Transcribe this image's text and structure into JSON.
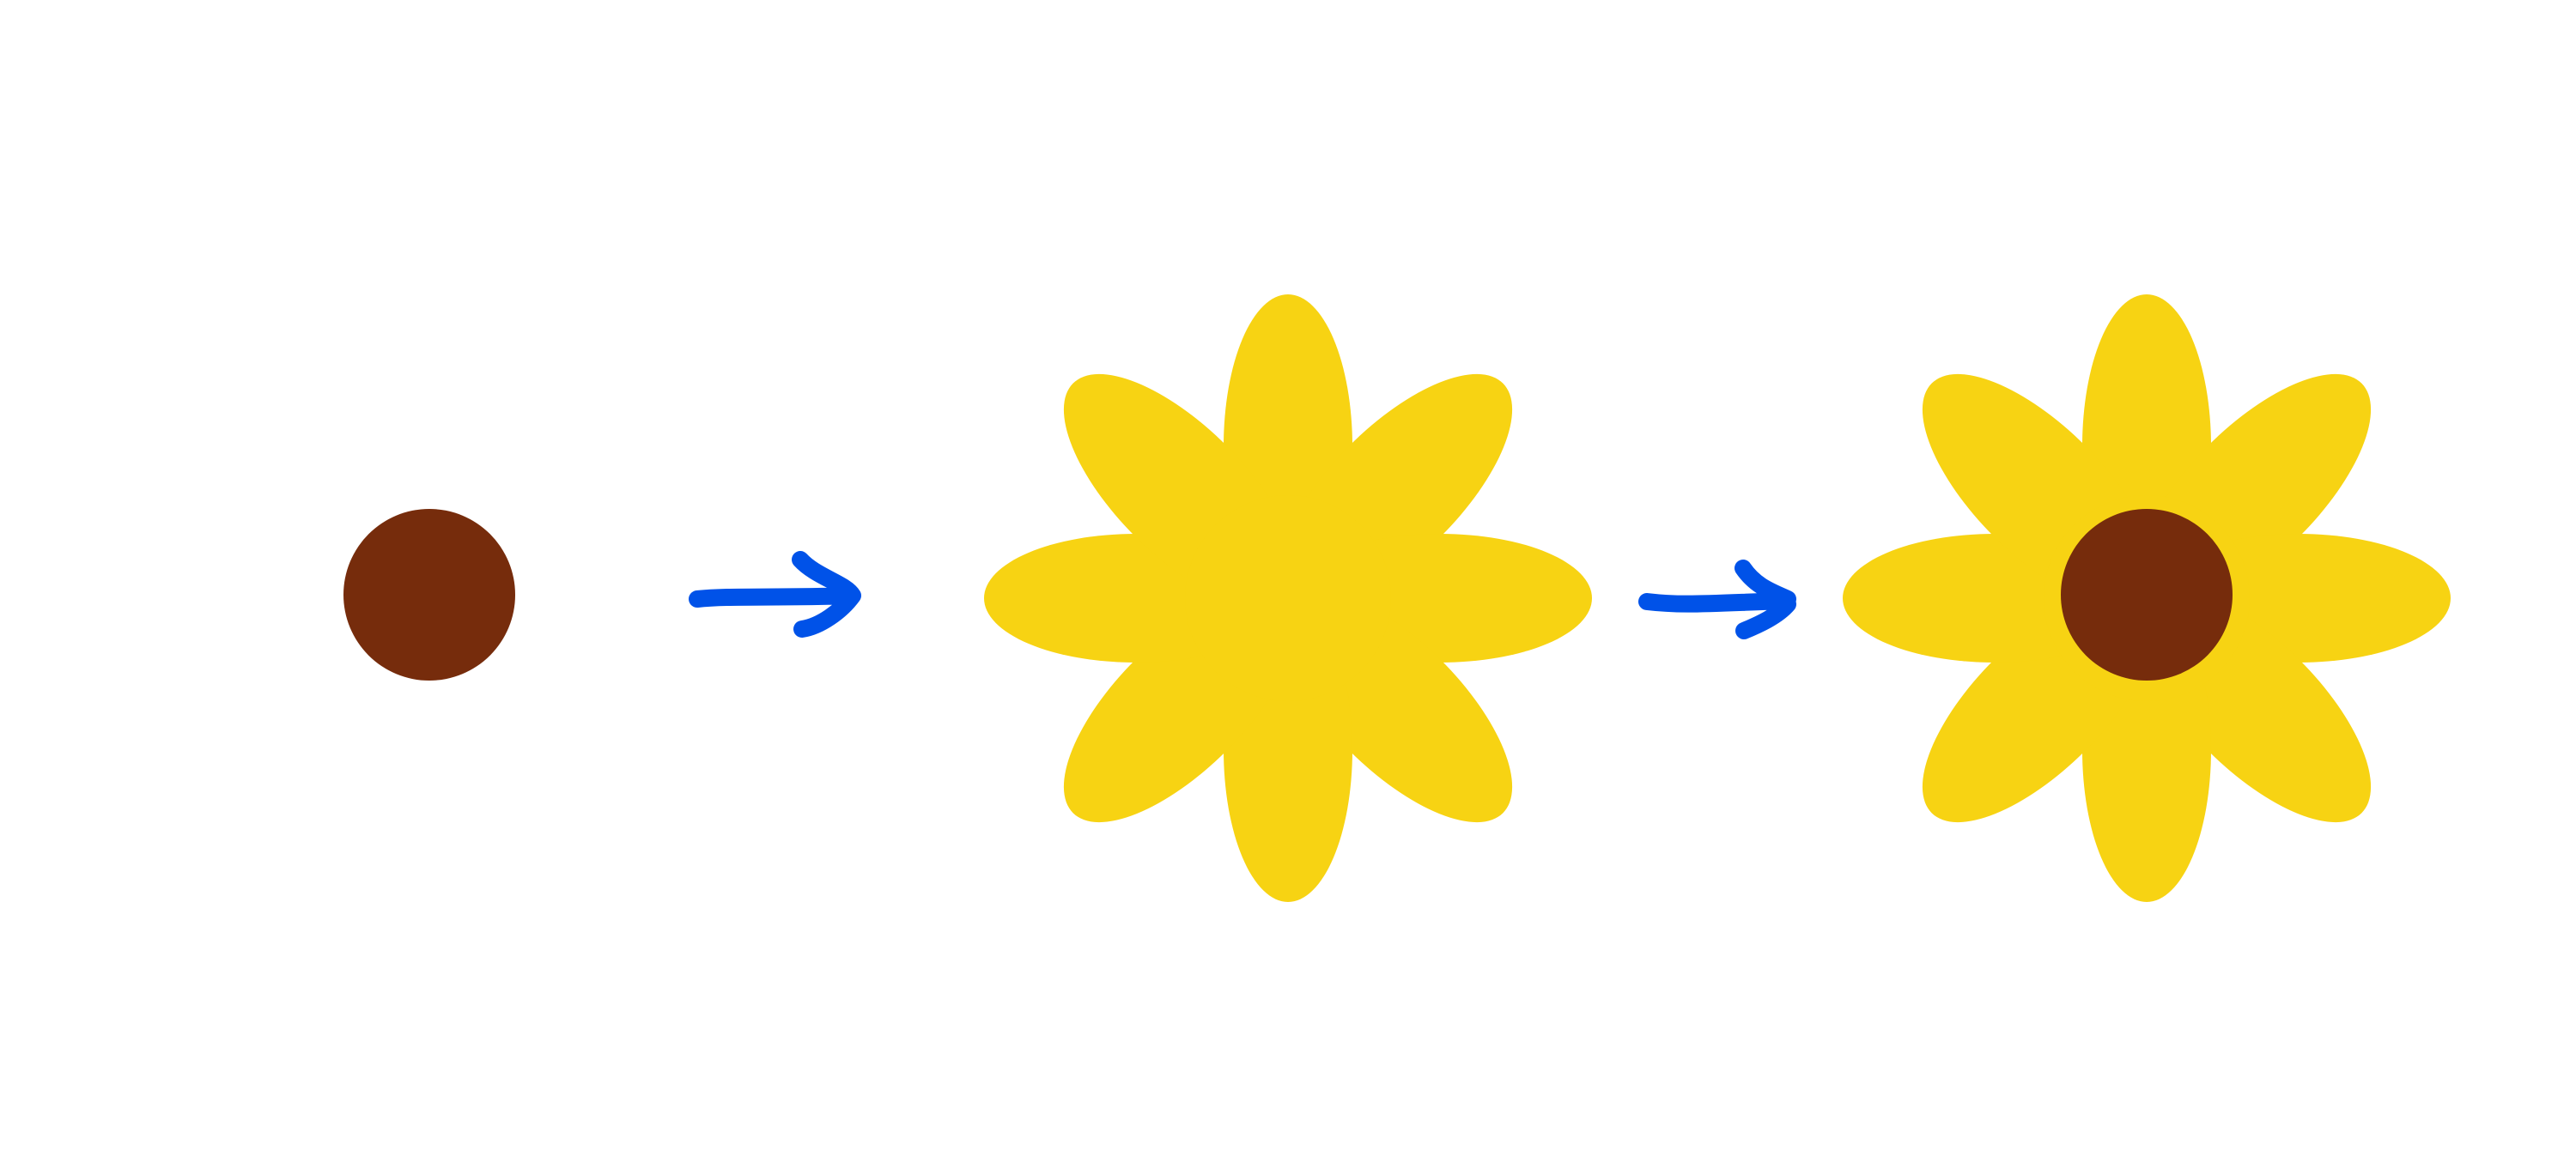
{
  "diagram": {
    "steps": [
      {
        "name": "center",
        "shape": "circle"
      },
      {
        "name": "petals",
        "shape": "flower-petals",
        "petal_count": 8
      },
      {
        "name": "flower",
        "shape": "petals-with-center",
        "petal_count": 8
      }
    ],
    "connectors": [
      {
        "from": "center",
        "to": "petals",
        "icon": "arrow-right-icon"
      },
      {
        "from": "petals",
        "to": "flower",
        "icon": "arrow-right-icon"
      }
    ]
  },
  "colors": {
    "background": "#ffffff",
    "center_fill": "#762c0c",
    "petal_fill": "#f7d313",
    "arrow_stroke": "#0052e8"
  }
}
